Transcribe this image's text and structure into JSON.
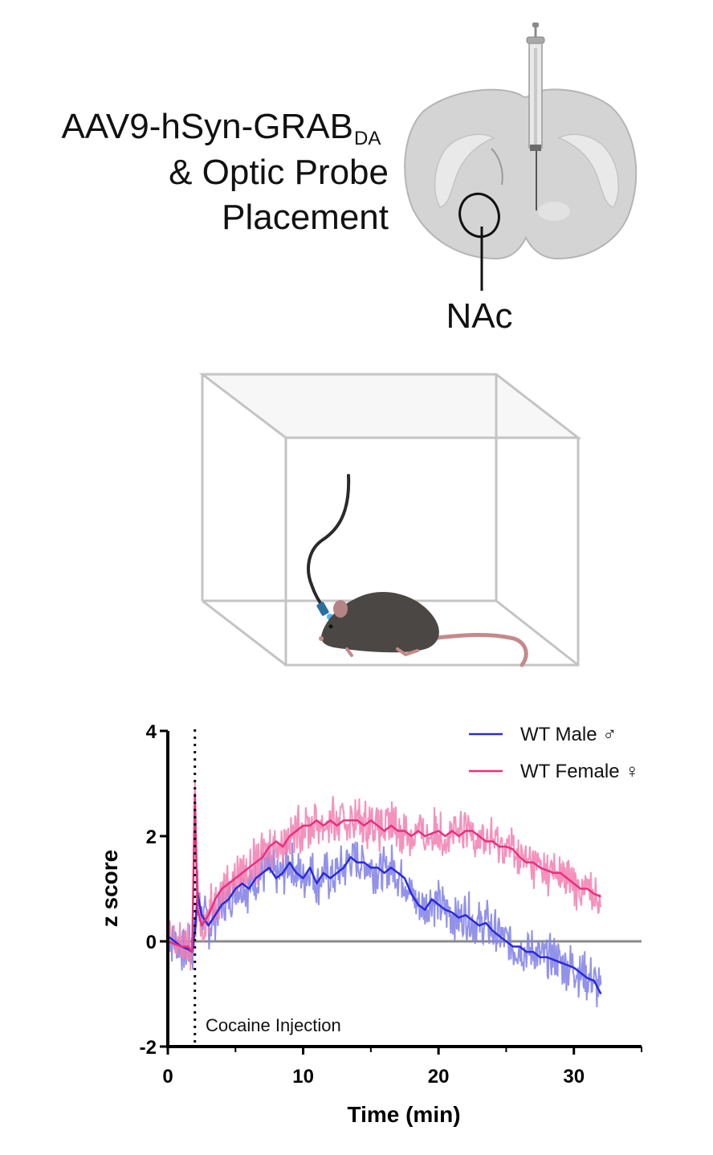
{
  "figure": {
    "virus_label_main": "AAV9-hSyn-GRAB",
    "virus_label_sub": "DA",
    "probe_line1": "& Optic Probe",
    "probe_line2": "Placement",
    "region_label": "NAc"
  },
  "chart_data": {
    "type": "line",
    "xlabel": "Time (min)",
    "ylabel": "z score",
    "xlim": [
      0,
      35
    ],
    "ylim": [
      -2,
      4
    ],
    "xticks": [
      0,
      10,
      20,
      30
    ],
    "yticks": [
      -2,
      0,
      2,
      4
    ],
    "baseline_y": 0,
    "annotations": [
      {
        "x": 2,
        "text": "Cocaine Injection",
        "style": "dotted vertical line"
      }
    ],
    "legend_position": "top-right",
    "series": [
      {
        "name": "WT Male ♂",
        "color": "#2a2ad8",
        "band_color": "#7f7fe8",
        "x": [
          0,
          0.5,
          1,
          1.5,
          1.8,
          2,
          2.2,
          2.5,
          3,
          3.5,
          4,
          4.5,
          5,
          5.5,
          6,
          6.5,
          7,
          7.5,
          8,
          8.5,
          9,
          9.5,
          10,
          10.5,
          11,
          11.5,
          12,
          12.5,
          13,
          13.5,
          14,
          14.5,
          15,
          15.5,
          16,
          16.5,
          17,
          17.5,
          18,
          18.5,
          19,
          19.5,
          20,
          20.5,
          21,
          21.5,
          22,
          22.5,
          23,
          23.5,
          24,
          24.5,
          25,
          25.5,
          26,
          26.5,
          27,
          27.5,
          28,
          28.5,
          29,
          29.5,
          30,
          30.5,
          31,
          31.5,
          32
        ],
        "y": [
          0.1,
          0.0,
          -0.1,
          -0.15,
          -0.2,
          0.2,
          0.9,
          0.5,
          0.3,
          0.5,
          0.7,
          0.8,
          1.0,
          1.1,
          1.0,
          1.2,
          1.3,
          1.4,
          1.2,
          1.3,
          1.5,
          1.3,
          1.2,
          1.4,
          1.1,
          1.3,
          1.2,
          1.3,
          1.4,
          1.6,
          1.5,
          1.5,
          1.4,
          1.4,
          1.3,
          1.4,
          1.3,
          1.2,
          0.9,
          0.7,
          0.6,
          0.8,
          0.7,
          0.6,
          0.55,
          0.45,
          0.5,
          0.4,
          0.3,
          0.35,
          0.2,
          0.1,
          0.0,
          -0.1,
          -0.1,
          -0.2,
          -0.2,
          -0.3,
          -0.3,
          -0.35,
          -0.4,
          -0.45,
          -0.5,
          -0.6,
          -0.7,
          -0.75,
          -1.0
        ]
      },
      {
        "name": "WT Female ♀",
        "color": "#e8307e",
        "band_color": "#f27eb0",
        "x": [
          0,
          0.5,
          1,
          1.5,
          1.8,
          2,
          2.2,
          2.5,
          3,
          3.5,
          4,
          4.5,
          5,
          5.5,
          6,
          6.5,
          7,
          7.5,
          8,
          8.5,
          9,
          9.5,
          10,
          10.5,
          11,
          11.5,
          12,
          12.5,
          13,
          13.5,
          14,
          14.5,
          15,
          15.5,
          16,
          16.5,
          17,
          17.5,
          18,
          18.5,
          19,
          19.5,
          20,
          20.5,
          21,
          21.5,
          22,
          22.5,
          23,
          23.5,
          24,
          24.5,
          25,
          25.5,
          26,
          26.5,
          27,
          27.5,
          28,
          28.5,
          29,
          29.5,
          30,
          30.5,
          31,
          31.5,
          32
        ],
        "y": [
          0.0,
          -0.05,
          -0.1,
          -0.1,
          -0.2,
          2.8,
          0.6,
          0.3,
          0.5,
          0.8,
          1.0,
          1.1,
          1.2,
          1.3,
          1.4,
          1.5,
          1.6,
          1.8,
          1.9,
          1.8,
          2.0,
          2.1,
          2.2,
          2.2,
          2.3,
          2.2,
          2.3,
          2.2,
          2.3,
          2.3,
          2.3,
          2.2,
          2.3,
          2.2,
          2.1,
          2.2,
          2.1,
          2.1,
          2.0,
          2.1,
          2.0,
          2.05,
          2.1,
          2.0,
          2.1,
          2.0,
          2.1,
          2.1,
          2.0,
          1.9,
          1.9,
          1.8,
          1.8,
          1.75,
          1.6,
          1.5,
          1.5,
          1.4,
          1.35,
          1.3,
          1.3,
          1.2,
          1.1,
          1.0,
          1.0,
          0.9,
          0.85
        ]
      }
    ]
  }
}
